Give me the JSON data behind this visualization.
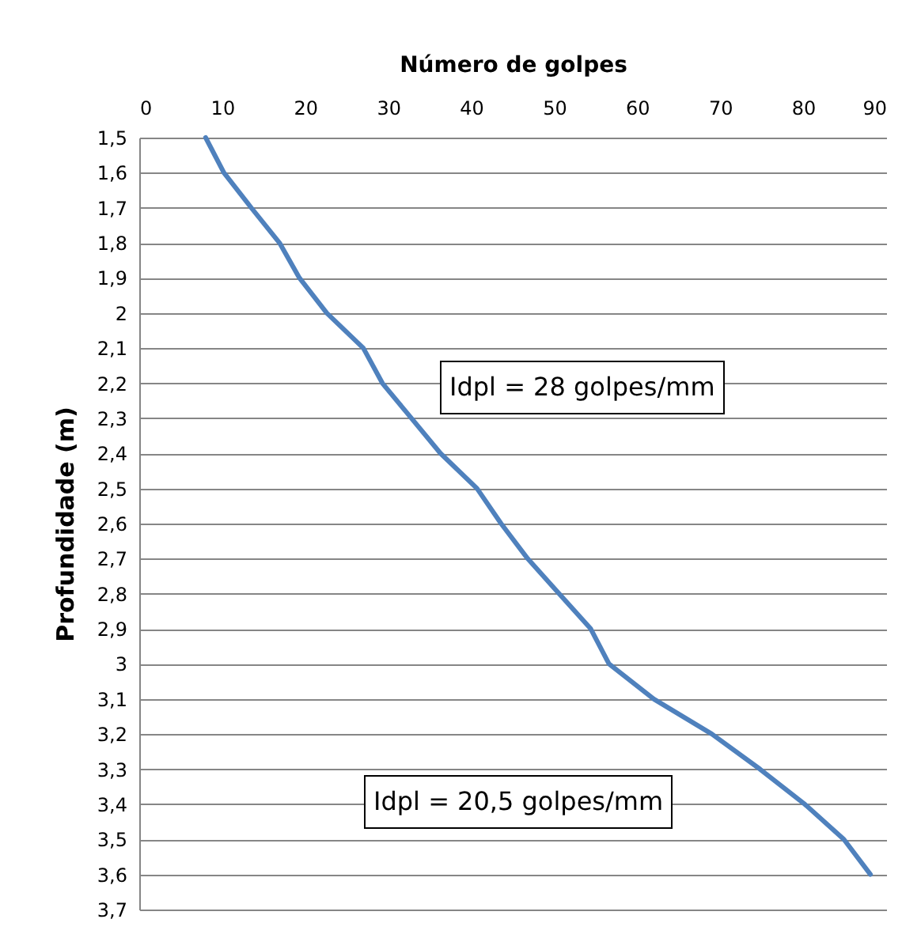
{
  "chart_data": {
    "type": "line",
    "xlabel": "Número de golpes",
    "ylabel": "Profundidade (m)",
    "x": [
      8,
      10.2,
      13.5,
      16.9,
      19.3,
      22.6,
      27,
      29.3,
      32.8,
      36.3,
      40.7,
      43.6,
      46.8,
      50.6,
      54.4,
      56.6,
      62,
      69,
      74.8,
      80.2,
      84.9,
      88.1
    ],
    "series": [
      {
        "color": "#4f81bd",
        "values": [
          1.5,
          1.6,
          1.7,
          1.8,
          1.9,
          2,
          2.1,
          2.2,
          2.3,
          2.4,
          2.5,
          2.6,
          2.7,
          2.8,
          2.9,
          3,
          3.1,
          3.2,
          3.3,
          3.4,
          3.5,
          3.6
        ]
      }
    ],
    "xlim": [
      0,
      90
    ],
    "xticks": [
      0,
      10,
      20,
      30,
      40,
      50,
      60,
      70,
      80,
      90
    ],
    "ylim": [
      3.7,
      1.5
    ],
    "yticks": [
      {
        "value": 1.5,
        "label": "1,5"
      },
      {
        "value": 1.6,
        "label": "1,6"
      },
      {
        "value": 1.7,
        "label": "1,7"
      },
      {
        "value": 1.8,
        "label": "1,8"
      },
      {
        "value": 1.9,
        "label": "1,9"
      },
      {
        "value": 2,
        "label": "2"
      },
      {
        "value": 2.1,
        "label": "2,1"
      },
      {
        "value": 2.2,
        "label": "2,2"
      },
      {
        "value": 2.3,
        "label": "2,3"
      },
      {
        "value": 2.4,
        "label": "2,4"
      },
      {
        "value": 2.5,
        "label": "2,5"
      },
      {
        "value": 2.6,
        "label": "2,6"
      },
      {
        "value": 2.7,
        "label": "2,7"
      },
      {
        "value": 2.8,
        "label": "2,8"
      },
      {
        "value": 2.9,
        "label": "2,9"
      },
      {
        "value": 3,
        "label": "3"
      },
      {
        "value": 3.1,
        "label": "3,1"
      },
      {
        "value": 3.2,
        "label": "3,2"
      },
      {
        "value": 3.3,
        "label": "3,3"
      },
      {
        "value": 3.4,
        "label": "3,4"
      },
      {
        "value": 3.5,
        "label": "3,5"
      },
      {
        "value": 3.6,
        "label": "3,6"
      },
      {
        "value": 3.7,
        "label": "3,7"
      }
    ],
    "annotations": [
      "Idpl = 28 golpes/mm",
      "Idpl = 20,5 golpes/mm"
    ],
    "grid": "y",
    "line_style": "solid",
    "marker": "none"
  }
}
